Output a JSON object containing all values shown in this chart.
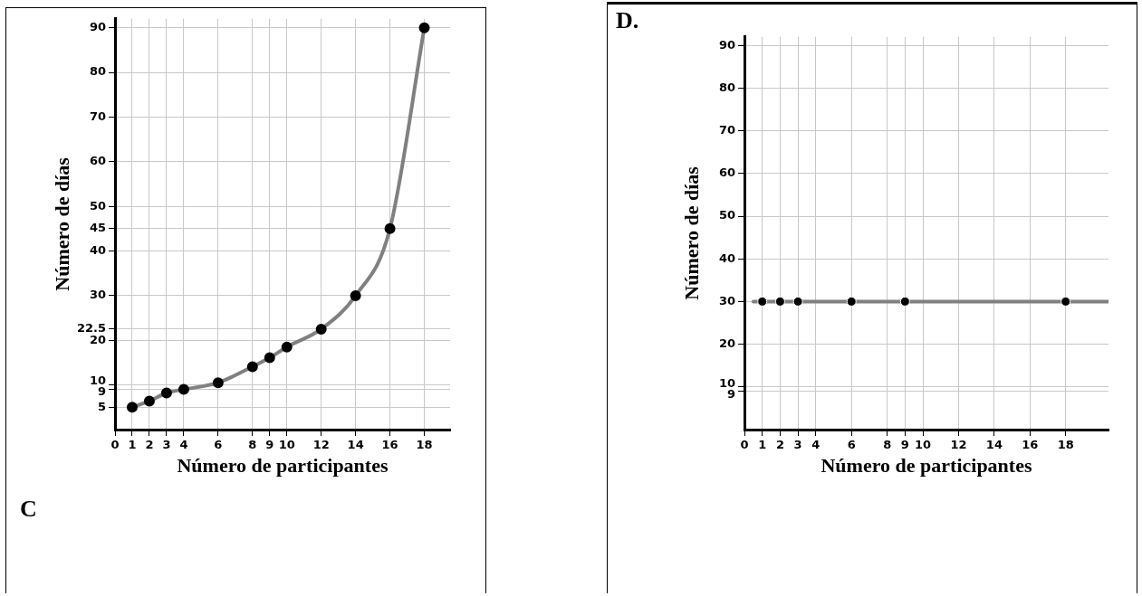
{
  "chart_data": [
    {
      "type": "line",
      "xlabel": "Número de participantes",
      "ylabel": "Número de días",
      "annotations": [
        "C"
      ],
      "xlim": [
        0,
        19.5
      ],
      "ylim": [
        0,
        92
      ],
      "xticks": [
        0,
        1,
        2,
        3,
        4,
        6,
        8,
        9,
        10,
        12,
        14,
        16,
        18
      ],
      "yticks": [
        5,
        9,
        10,
        20,
        22.5,
        30,
        40,
        45,
        50,
        60,
        70,
        80,
        90
      ],
      "grid": true,
      "legend": false,
      "marker": "circle",
      "series": [
        {
          "color": "#808080",
          "x": [
            1,
            2,
            3,
            4,
            6,
            8,
            9,
            10,
            12,
            14,
            16,
            18
          ],
          "values": [
            5,
            6.4,
            8.2,
            9,
            10.5,
            14.1,
            16.1,
            18.5,
            22.5,
            30,
            45,
            90
          ]
        }
      ]
    },
    {
      "type": "scatter",
      "xlabel": "Número de participantes",
      "ylabel": "Número de días",
      "annotations": [
        "D."
      ],
      "xlim": [
        0,
        20.4
      ],
      "ylim": [
        0,
        92
      ],
      "xticks": [
        0,
        1,
        2,
        3,
        4,
        6,
        8,
        9,
        10,
        12,
        14,
        16,
        18
      ],
      "yticks": [
        9,
        10,
        20,
        30,
        40,
        50,
        60,
        70,
        80,
        90
      ],
      "grid": true,
      "legend": false,
      "marker": "circle",
      "series": [
        {
          "type": "line",
          "marker": "none",
          "color": "#808080",
          "x": [
            0.5,
            20.4
          ],
          "values": [
            30,
            30
          ]
        },
        {
          "color": "#000000",
          "x": [
            1,
            2,
            3,
            6,
            9,
            18
          ],
          "values": [
            30,
            30,
            30,
            30,
            30,
            30
          ]
        }
      ]
    }
  ]
}
